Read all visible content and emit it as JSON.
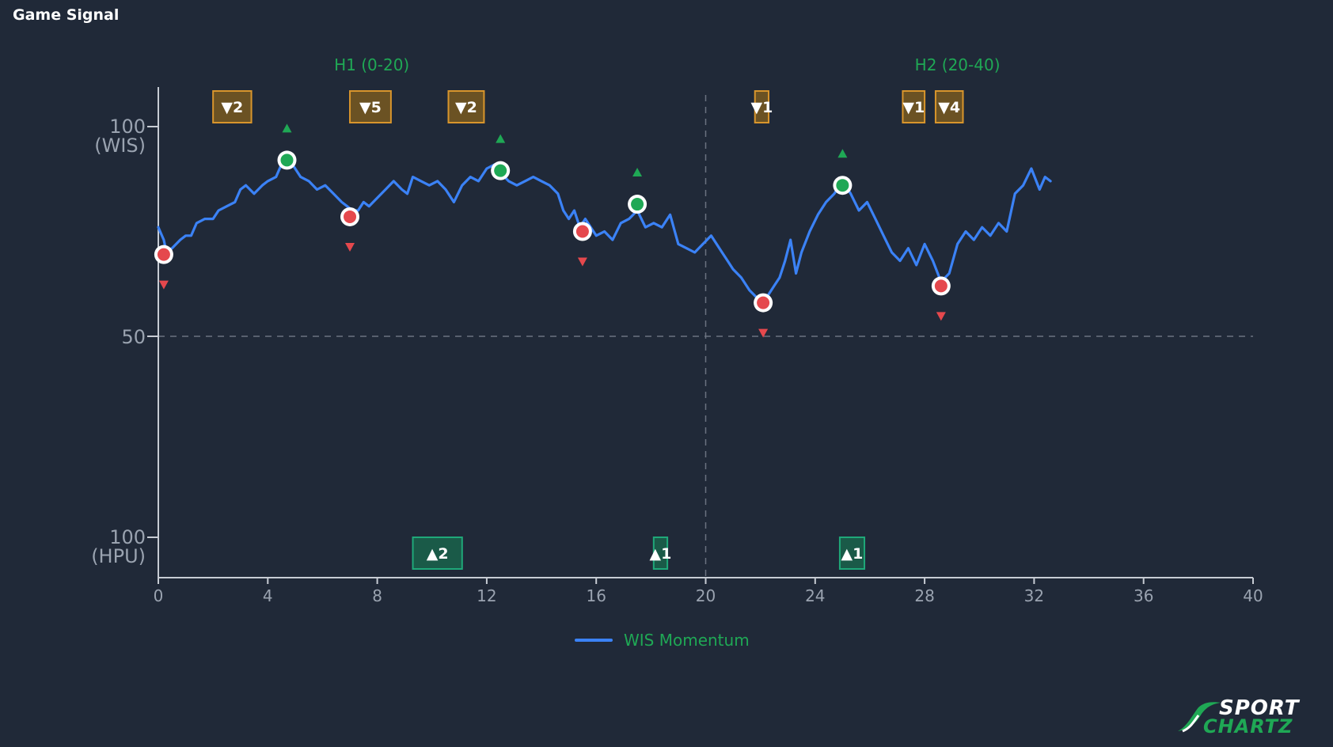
{
  "title": "Game Signal",
  "chart_data": {
    "type": "line",
    "x_ticks": [
      "0",
      "4",
      "8",
      "12",
      "16",
      "20",
      "24",
      "28",
      "32",
      "36",
      "40"
    ],
    "xlim": [
      0,
      40
    ],
    "ylim": [
      -100,
      100
    ],
    "y_ticks": [
      {
        "value": 100,
        "line1": "100",
        "line2": "(WIS)"
      },
      {
        "value": 50,
        "line1": "50",
        "line2": ""
      },
      {
        "value": -100,
        "line1": "100",
        "line2": "(HPU)"
      }
    ],
    "halves": [
      {
        "label": "H1 (0-20)",
        "x": 7.8
      },
      {
        "label": "H2 (20-40)",
        "x": 29.2
      }
    ],
    "halftime_x": 20,
    "reference_y": 50,
    "series": [
      {
        "name": "WIS Momentum",
        "color": "#3b82f6",
        "points": [
          [
            0.0,
            76
          ],
          [
            0.2,
            73
          ],
          [
            0.3,
            70
          ],
          [
            0.5,
            71
          ],
          [
            0.8,
            73
          ],
          [
            1.0,
            74
          ],
          [
            1.2,
            74
          ],
          [
            1.4,
            77
          ],
          [
            1.7,
            78
          ],
          [
            2.0,
            78
          ],
          [
            2.2,
            80
          ],
          [
            2.5,
            81
          ],
          [
            2.8,
            82
          ],
          [
            3.0,
            85
          ],
          [
            3.2,
            86
          ],
          [
            3.5,
            84
          ],
          [
            3.8,
            86
          ],
          [
            4.0,
            87
          ],
          [
            4.3,
            88
          ],
          [
            4.5,
            91
          ],
          [
            4.7,
            92
          ],
          [
            4.9,
            91
          ],
          [
            5.2,
            88
          ],
          [
            5.5,
            87
          ],
          [
            5.8,
            85
          ],
          [
            6.1,
            86
          ],
          [
            6.4,
            84
          ],
          [
            6.7,
            82
          ],
          [
            6.9,
            81
          ],
          [
            7.1,
            80
          ],
          [
            7.3,
            80
          ],
          [
            7.5,
            82
          ],
          [
            7.7,
            81
          ],
          [
            8.0,
            83
          ],
          [
            8.3,
            85
          ],
          [
            8.6,
            87
          ],
          [
            8.9,
            85
          ],
          [
            9.1,
            84
          ],
          [
            9.3,
            88
          ],
          [
            9.6,
            87
          ],
          [
            9.9,
            86
          ],
          [
            10.2,
            87
          ],
          [
            10.5,
            85
          ],
          [
            10.8,
            82
          ],
          [
            11.1,
            86
          ],
          [
            11.4,
            88
          ],
          [
            11.7,
            87
          ],
          [
            12.0,
            90
          ],
          [
            12.3,
            91
          ],
          [
            12.5,
            89
          ],
          [
            12.8,
            87
          ],
          [
            13.1,
            86
          ],
          [
            13.4,
            87
          ],
          [
            13.7,
            88
          ],
          [
            14.0,
            87
          ],
          [
            14.3,
            86
          ],
          [
            14.6,
            84
          ],
          [
            14.8,
            80
          ],
          [
            15.0,
            78
          ],
          [
            15.2,
            80
          ],
          [
            15.4,
            76
          ],
          [
            15.6,
            78
          ],
          [
            15.8,
            76
          ],
          [
            16.0,
            74
          ],
          [
            16.3,
            75
          ],
          [
            16.6,
            73
          ],
          [
            16.9,
            77
          ],
          [
            17.2,
            78
          ],
          [
            17.5,
            80
          ],
          [
            17.8,
            76
          ],
          [
            18.1,
            77
          ],
          [
            18.4,
            76
          ],
          [
            18.7,
            79
          ],
          [
            19.0,
            72
          ],
          [
            19.3,
            71
          ],
          [
            19.6,
            70
          ],
          [
            19.9,
            72
          ],
          [
            20.2,
            74
          ],
          [
            20.4,
            72
          ],
          [
            20.6,
            70
          ],
          [
            20.8,
            68
          ],
          [
            21.0,
            66
          ],
          [
            21.3,
            64
          ],
          [
            21.6,
            61
          ],
          [
            21.9,
            59
          ],
          [
            22.1,
            58
          ],
          [
            22.3,
            60
          ],
          [
            22.5,
            62
          ],
          [
            22.7,
            64
          ],
          [
            22.9,
            68
          ],
          [
            23.1,
            73
          ],
          [
            23.3,
            65
          ],
          [
            23.5,
            70
          ],
          [
            23.8,
            75
          ],
          [
            24.1,
            79
          ],
          [
            24.4,
            82
          ],
          [
            24.7,
            84
          ],
          [
            25.0,
            87
          ],
          [
            25.3,
            84
          ],
          [
            25.6,
            80
          ],
          [
            25.9,
            82
          ],
          [
            26.2,
            78
          ],
          [
            26.5,
            74
          ],
          [
            26.8,
            70
          ],
          [
            27.1,
            68
          ],
          [
            27.4,
            71
          ],
          [
            27.7,
            67
          ],
          [
            28.0,
            72
          ],
          [
            28.3,
            68
          ],
          [
            28.6,
            63
          ],
          [
            28.9,
            65
          ],
          [
            29.2,
            72
          ],
          [
            29.5,
            75
          ],
          [
            29.8,
            73
          ],
          [
            30.1,
            76
          ],
          [
            30.4,
            74
          ],
          [
            30.7,
            77
          ],
          [
            31.0,
            75
          ],
          [
            31.3,
            84
          ],
          [
            31.6,
            86
          ],
          [
            31.9,
            90
          ],
          [
            32.2,
            85
          ],
          [
            32.4,
            88
          ],
          [
            32.6,
            87
          ]
        ]
      }
    ],
    "swing_markers": [
      {
        "x": 0.2,
        "y": 69.5,
        "kind": "low"
      },
      {
        "x": 4.7,
        "y": 92.0,
        "kind": "high"
      },
      {
        "x": 7.0,
        "y": 78.5,
        "kind": "low"
      },
      {
        "x": 12.5,
        "y": 89.5,
        "kind": "high"
      },
      {
        "x": 15.5,
        "y": 75.0,
        "kind": "low"
      },
      {
        "x": 17.5,
        "y": 81.5,
        "kind": "high"
      },
      {
        "x": 22.1,
        "y": 58.0,
        "kind": "low"
      },
      {
        "x": 25.0,
        "y": 86.0,
        "kind": "high"
      },
      {
        "x": 28.6,
        "y": 62.0,
        "kind": "low"
      }
    ],
    "run_boxes_top": [
      {
        "x0": 2.0,
        "x1": 3.4,
        "label": "▼2"
      },
      {
        "x0": 7.0,
        "x1": 8.5,
        "label": "▼5"
      },
      {
        "x0": 10.6,
        "x1": 11.9,
        "label": "▼2"
      },
      {
        "x0": 21.8,
        "x1": 22.3,
        "label": "▼1"
      },
      {
        "x0": 27.2,
        "x1": 28.0,
        "label": "▼1"
      },
      {
        "x0": 28.4,
        "x1": 29.4,
        "label": "▼4"
      }
    ],
    "run_boxes_bottom": [
      {
        "x0": 9.3,
        "x1": 11.1,
        "label": "▲2"
      },
      {
        "x0": 18.1,
        "x1": 18.6,
        "label": "▲1"
      },
      {
        "x0": 24.9,
        "x1": 25.8,
        "label": "▲1"
      }
    ],
    "colors": {
      "line": "#3b82f6",
      "high": "#1fa855",
      "low": "#e5484d",
      "box_top_fill": "#6b5223",
      "box_top_stroke": "#d8952c",
      "box_bottom_fill": "#1a5a48",
      "box_bottom_stroke": "#1fa879",
      "axis": "#c7ccd4",
      "grid": "#6b7280"
    }
  },
  "legend": {
    "label": "WIS Momentum"
  },
  "logo": {
    "top": "SPORT",
    "bottom": "CHARTZ"
  }
}
